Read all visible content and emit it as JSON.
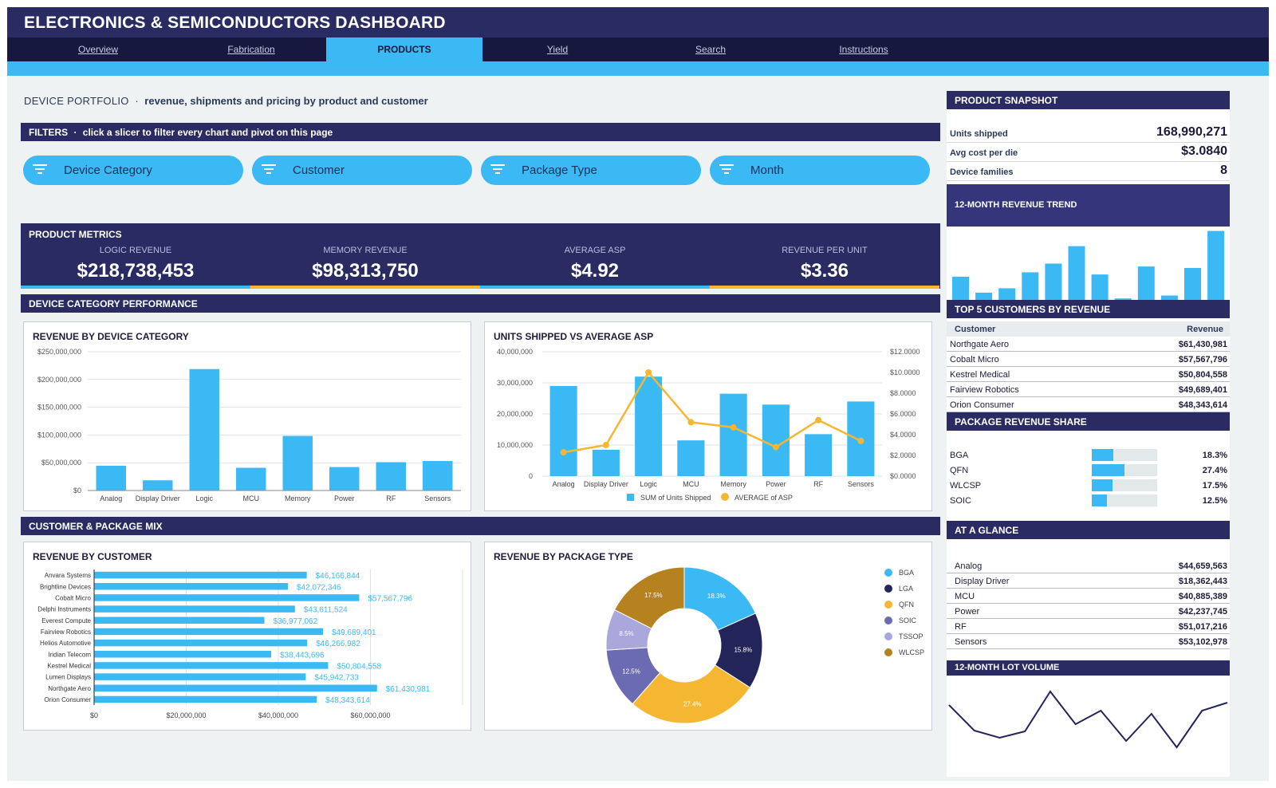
{
  "app": {
    "title": "ELECTRONICS & SEMICONDUCTORS DASHBOARD"
  },
  "nav": {
    "tabs": [
      {
        "label": "Overview",
        "active": false
      },
      {
        "label": "Fabrication",
        "active": false
      },
      {
        "label": "PRODUCTS",
        "active": true
      },
      {
        "label": "Yield",
        "active": false
      },
      {
        "label": "Search",
        "active": false
      },
      {
        "label": "Instructions",
        "active": false
      }
    ]
  },
  "subheading": {
    "title": "DEVICE PORTFOLIO",
    "sep": "·",
    "desc": "revenue, shipments and pricing by product and customer"
  },
  "filters": {
    "title": "FILTERS",
    "note": "click a slicer to filter every chart and pivot on this page",
    "slicers": [
      {
        "label": "Device Category",
        "icon": "filter-icon"
      },
      {
        "label": "Customer",
        "icon": "filter-icon"
      },
      {
        "label": "Package Type",
        "icon": "filter-icon"
      },
      {
        "label": "Month",
        "icon": "filter-icon"
      }
    ]
  },
  "metrics": {
    "title": "PRODUCT METRICS",
    "items": [
      {
        "label": "LOGIC REVENUE",
        "value": "$218,738,453",
        "accent": "#3bb9f4"
      },
      {
        "label": "MEMORY REVENUE",
        "value": "$98,313,750",
        "accent": "#f5b731"
      },
      {
        "label": "AVERAGE ASP",
        "value": "$4.92",
        "accent": "#3bb9f4"
      },
      {
        "label": "REVENUE PER UNIT",
        "value": "$3.36",
        "accent": "#f5b731"
      }
    ]
  },
  "sections": {
    "category": "DEVICE CATEGORY PERFORMANCE",
    "mix": "CUSTOMER & PACKAGE MIX"
  },
  "colors": {
    "navy": "#2a2b62",
    "cyan": "#3bb9f4",
    "gold": "#f5b731",
    "darknavy": "#17183f"
  },
  "chart_data": [
    {
      "id": "revenue_by_category",
      "type": "bar",
      "title": "REVENUE BY DEVICE CATEGORY",
      "categories": [
        "Analog",
        "Display Driver",
        "Logic",
        "MCU",
        "Memory",
        "Power",
        "RF",
        "Sensors"
      ],
      "values": [
        44659563,
        18362443,
        218738453,
        40885389,
        98313750,
        42237745,
        51017216,
        53102978
      ],
      "ylim": [
        0,
        250000000
      ],
      "yticks": [
        "$0",
        "$50,000,000",
        "$100,000,000",
        "$150,000,000",
        "$200,000,000",
        "$250,000,000"
      ],
      "grid": true
    },
    {
      "id": "units_vs_asp",
      "type": "bar",
      "title": "UNITS SHIPPED VS AVERAGE ASP",
      "categories": [
        "Analog",
        "Display Driver",
        "Logic",
        "MCU",
        "Memory",
        "Power",
        "RF",
        "Sensors"
      ],
      "series": [
        {
          "name": "SUM of Units Shipped",
          "type": "bar",
          "axis": "left",
          "values": [
            29000000,
            8500000,
            32000000,
            11500000,
            26500000,
            23000000,
            13500000,
            24000000
          ]
        },
        {
          "name": "AVERAGE of ASP",
          "type": "line",
          "axis": "right",
          "values": [
            2.3,
            3.0,
            10.0,
            5.2,
            4.7,
            2.8,
            5.4,
            3.4
          ]
        }
      ],
      "ylim_left": [
        0,
        40000000
      ],
      "ylim_right": [
        0,
        12
      ],
      "yticks_left": [
        "0",
        "10,000,000",
        "20,000,000",
        "30,000,000",
        "40,000,000"
      ],
      "yticks_right": [
        "$0.0000",
        "$2.0000",
        "$4.0000",
        "$6.0000",
        "$8.0000",
        "$10.0000",
        "$12.0000"
      ],
      "legend_position": "bottom",
      "grid": true
    },
    {
      "id": "revenue_by_customer",
      "type": "bar",
      "orientation": "horizontal",
      "title": "REVENUE BY CUSTOMER",
      "categories": [
        "Anvara Systems",
        "Brightline Devices",
        "Cobalt Micro",
        "Delphi Instruments",
        "Everest Compute",
        "Fairview Robotics",
        "Helios Automotive",
        "Iridian Telecom",
        "Kestrel Medical",
        "Lumen Displays",
        "Northgate Aero",
        "Orion Consumer"
      ],
      "values": [
        46166844,
        42072346,
        57567796,
        43611524,
        36977062,
        49689401,
        46266982,
        38443696,
        50804558,
        45942733,
        61430981,
        48343614
      ],
      "labels": [
        "$46,166,844",
        "$42,072,346",
        "$57,567,796",
        "$43,611,524",
        "$36,977,062",
        "$49,689,401",
        "$46,266,982",
        "$38,443,696",
        "$50,804,558",
        "$45,942,733",
        "$61,430,981",
        "$48,343,614"
      ],
      "xlim": [
        0,
        80000000
      ],
      "xticks": [
        "$0",
        "$20,000,000",
        "$40,000,000",
        "$60,000,000"
      ],
      "grid": true
    },
    {
      "id": "revenue_by_package",
      "type": "pie",
      "donut": true,
      "title": "REVENUE BY PACKAGE TYPE",
      "labels": [
        "BGA",
        "LGA",
        "QFN",
        "SOIC",
        "TSSOP",
        "WLCSP"
      ],
      "values": [
        18.3,
        15.8,
        27.4,
        12.5,
        8.5,
        17.5
      ],
      "value_labels": [
        "18.3%",
        "15.8%",
        "27.4%",
        "12.5%",
        "8.5%",
        "17.5%"
      ],
      "colors": [
        "#3bb9f4",
        "#23245a",
        "#f5b731",
        "#6b6bb4",
        "#a9a7db",
        "#b5821f"
      ],
      "legend_position": "right"
    },
    {
      "id": "revenue_trend",
      "type": "bar",
      "title": "12-MONTH REVENUE TREND",
      "values": [
        32,
        10,
        16,
        38,
        50,
        74,
        35,
        2,
        46,
        6,
        44,
        95
      ],
      "value_unit": "relative (unlabeled axis)"
    },
    {
      "id": "lot_volume",
      "type": "line",
      "title": "12-MONTH LOT VOLUME",
      "values": [
        70,
        38,
        29,
        37,
        87,
        46,
        63,
        25,
        59,
        17,
        63,
        73
      ],
      "value_unit": "relative (unlabeled axis)"
    }
  ],
  "snapshot": {
    "title": "PRODUCT SNAPSHOT",
    "rows": [
      {
        "k": "Units shipped",
        "v": "168,990,271"
      },
      {
        "k": "Avg cost per die",
        "v": "$3.0840"
      },
      {
        "k": "Device families",
        "v": "8"
      }
    ]
  },
  "top_customers": {
    "title": "TOP 5 CUSTOMERS BY REVENUE",
    "col_customer": "Customer",
    "col_revenue": "Revenue",
    "rows": [
      {
        "n": "Northgate Aero",
        "r": "$61,430,981"
      },
      {
        "n": "Cobalt Micro",
        "r": "$57,567,796"
      },
      {
        "n": "Kestrel Medical",
        "r": "$50,804,558"
      },
      {
        "n": "Fairview Robotics",
        "r": "$49,689,401"
      },
      {
        "n": "Orion Consumer",
        "r": "$48,343,614"
      }
    ]
  },
  "package_share": {
    "title": "PACKAGE REVENUE SHARE",
    "rows": [
      {
        "n": "BGA",
        "r": "18.3%",
        "pct": 0.183
      },
      {
        "n": "QFN",
        "r": "27.4%",
        "pct": 0.274
      },
      {
        "n": "WLCSP",
        "r": "17.5%",
        "pct": 0.175
      },
      {
        "n": "SOIC",
        "r": "12.5%",
        "pct": 0.125
      }
    ]
  },
  "glance": {
    "title": "AT A GLANCE",
    "rows": [
      {
        "n": "Analog",
        "r": "$44,659,563"
      },
      {
        "n": "Display Driver",
        "r": "$18,362,443"
      },
      {
        "n": "MCU",
        "r": "$40,885,389"
      },
      {
        "n": "Power",
        "r": "$42,237,745"
      },
      {
        "n": "RF",
        "r": "$51,017,216"
      },
      {
        "n": "Sensors",
        "r": "$53,102,978"
      }
    ]
  }
}
